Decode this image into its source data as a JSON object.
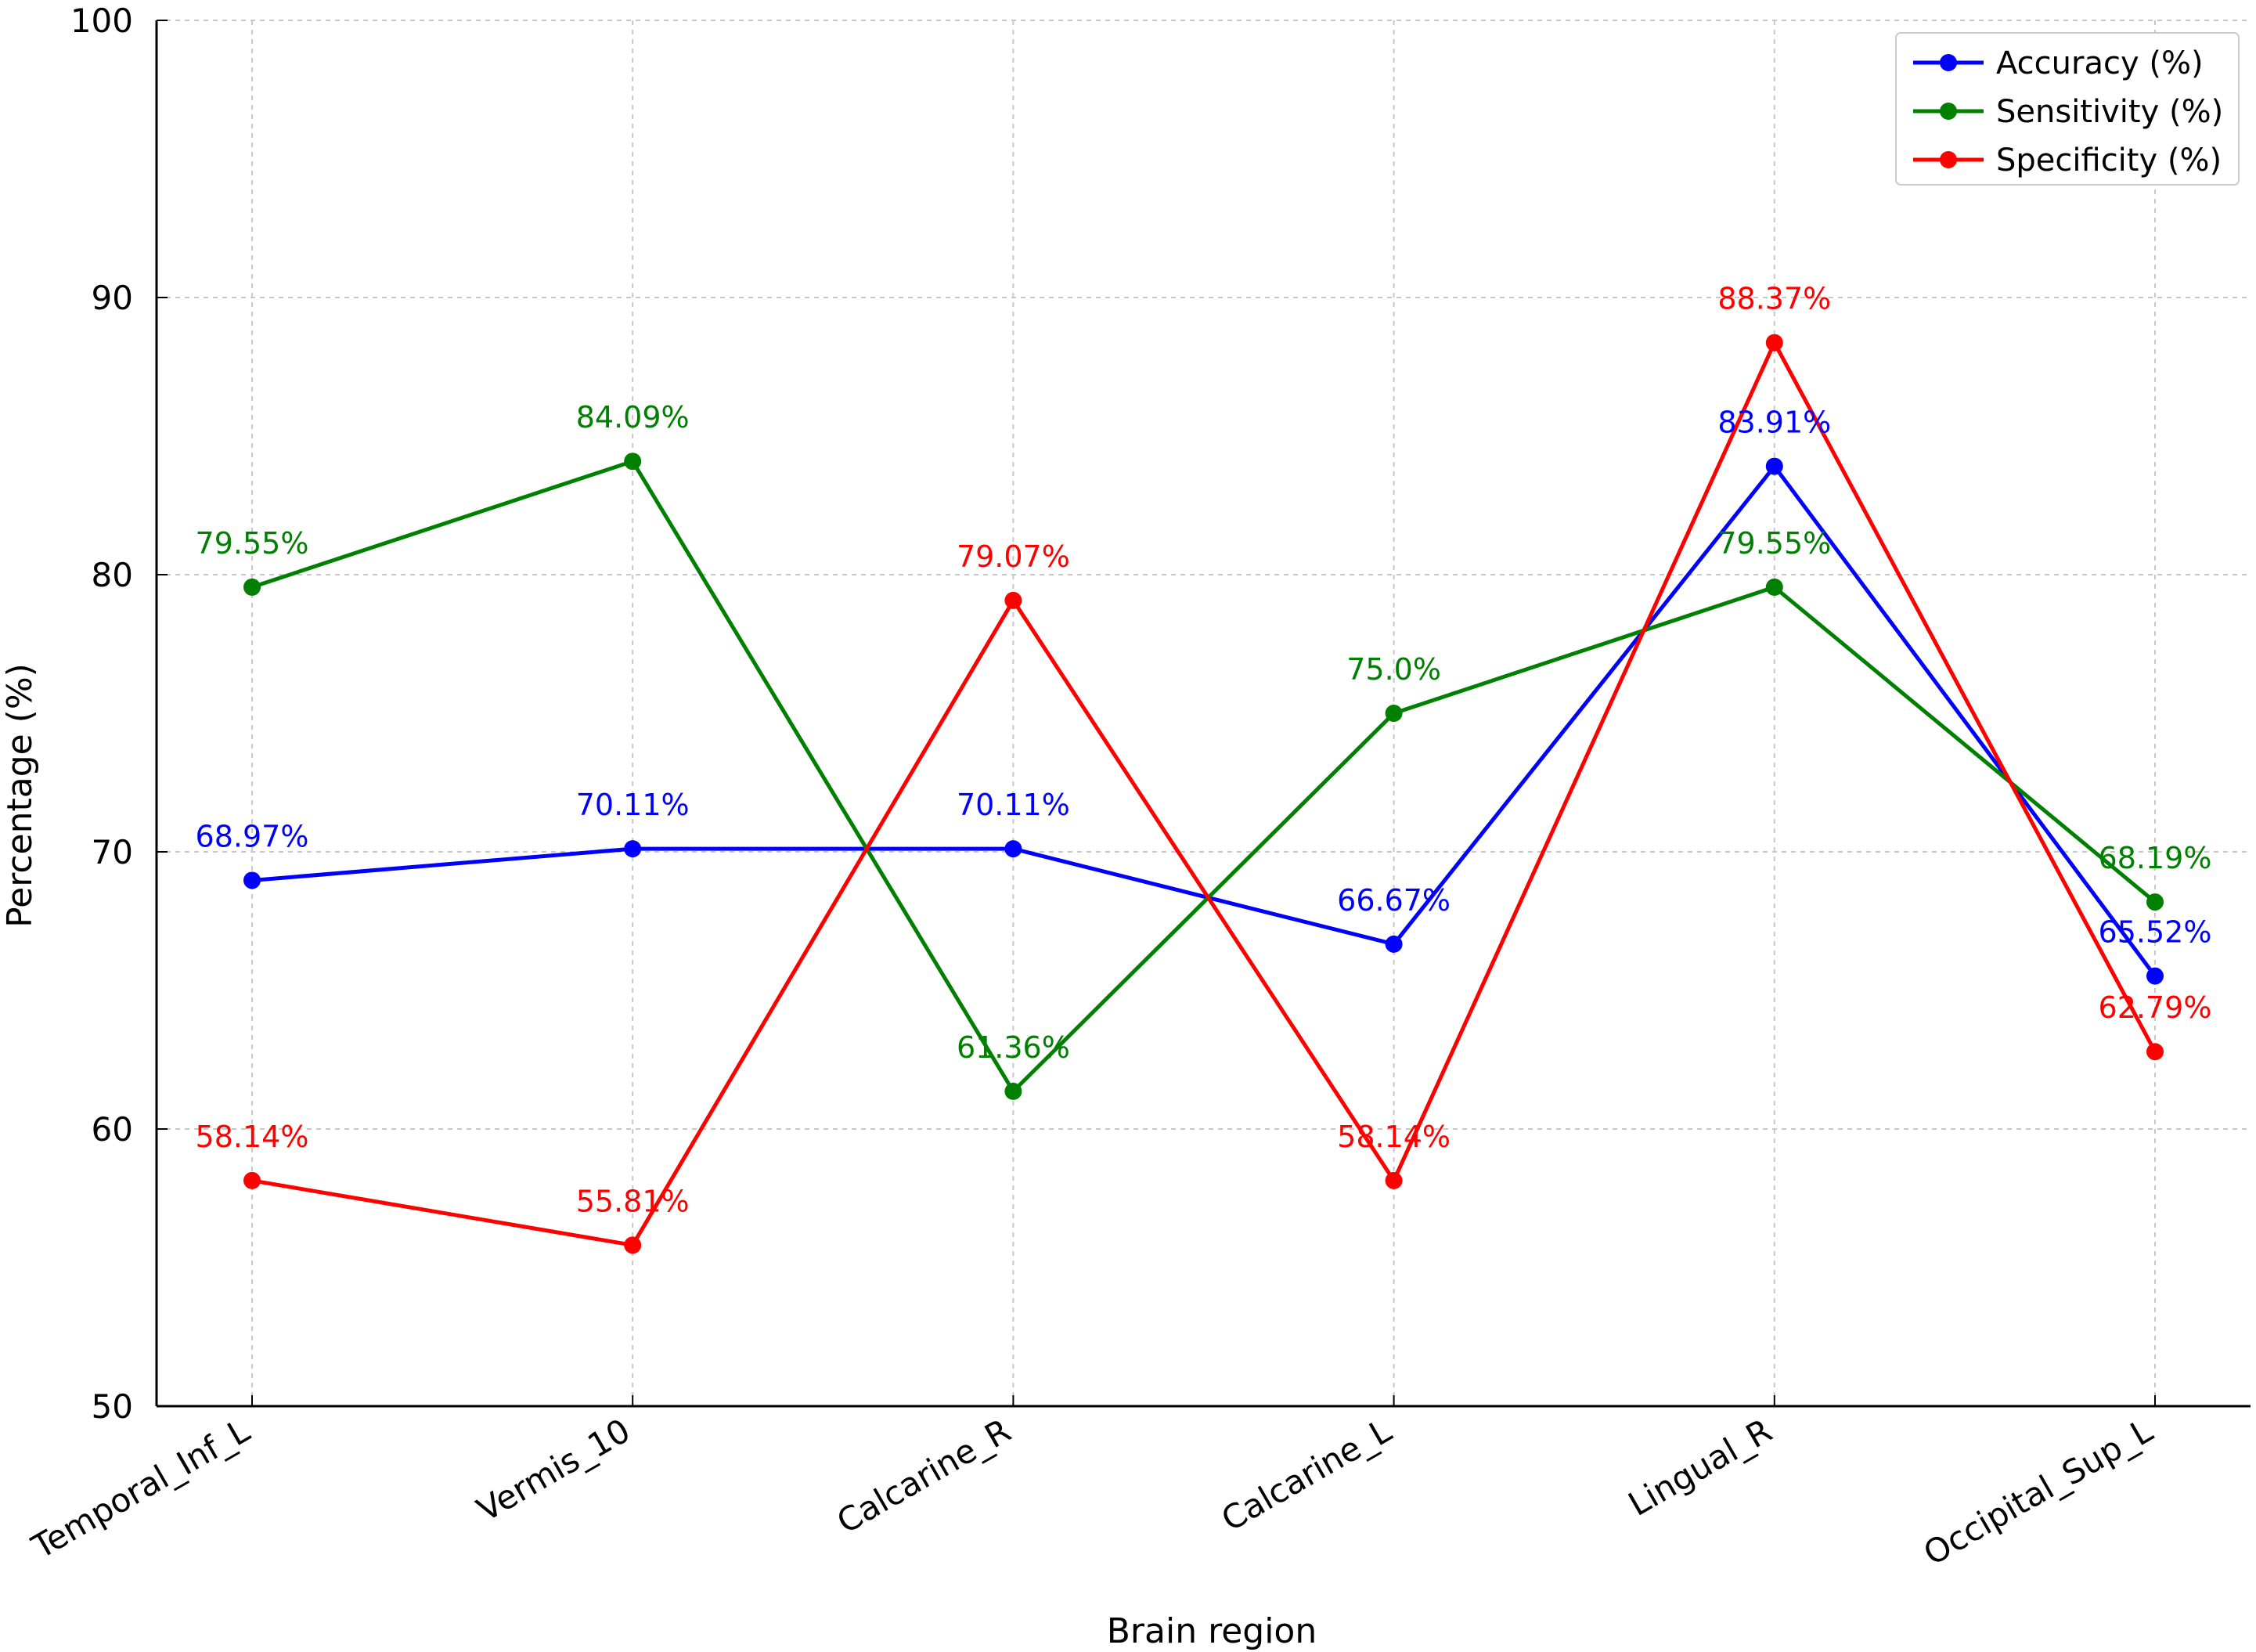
{
  "chart_data": {
    "type": "line",
    "title": "",
    "xlabel": "Brain region",
    "ylabel": "Percentage (%)",
    "ylim": [
      50,
      100
    ],
    "yticks": [
      50,
      60,
      70,
      80,
      90,
      100
    ],
    "grid": true,
    "legend_position": "top-right",
    "categories": [
      "Temporal_Inf_L",
      "Vermis_10",
      "Calcarine_R",
      "Calcarine_L",
      "Lingual_R",
      "Occipital_Sup_L"
    ],
    "series": [
      {
        "name": "Accuracy (%)",
        "color": "#0000ff",
        "values": [
          68.97,
          70.11,
          70.11,
          66.67,
          83.91,
          65.52
        ],
        "labels": [
          "68.97%",
          "70.11%",
          "70.11%",
          "66.67%",
          "83.91%",
          "65.52%"
        ]
      },
      {
        "name": "Sensitivity (%)",
        "color": "#008000",
        "values": [
          79.55,
          84.09,
          61.36,
          75.0,
          79.55,
          68.19
        ],
        "labels": [
          "79.55%",
          "84.09%",
          "61.36%",
          "75.0%",
          "79.55%",
          "68.19%"
        ]
      },
      {
        "name": "Specificity (%)",
        "color": "#ff0000",
        "values": [
          58.14,
          55.81,
          79.07,
          58.14,
          88.37,
          62.79
        ],
        "labels": [
          "58.14%",
          "55.81%",
          "79.07%",
          "58.14%",
          "88.37%",
          "62.79%"
        ]
      }
    ]
  }
}
